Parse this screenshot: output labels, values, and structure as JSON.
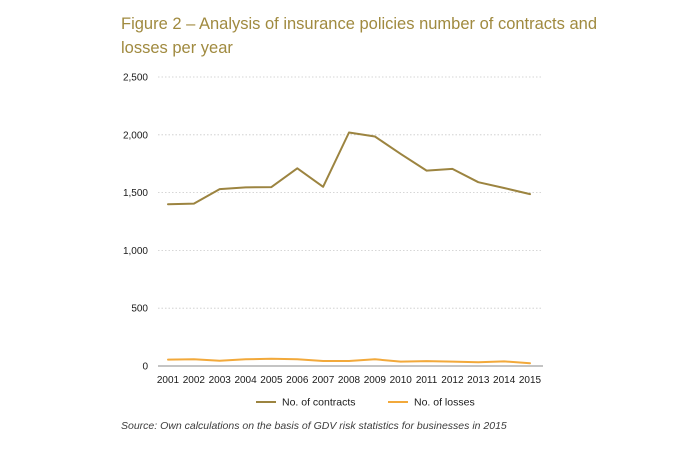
{
  "title": "Figure 2 – Analysis of insurance policies number of contracts and losses per year",
  "source": "Source: Own calculations on the basis of GDV risk statistics for businesses in 2015",
  "chart_data": {
    "type": "line",
    "title": "Figure 2 – Analysis of insurance policies number of contracts and losses per year",
    "xlabel": "",
    "ylabel": "",
    "ylim": [
      0,
      2500
    ],
    "yticks": [
      0,
      500,
      1000,
      1500,
      2000,
      2500
    ],
    "ytick_labels": [
      "0",
      "500",
      "1,000",
      "1,500",
      "2,000",
      "2,500"
    ],
    "grid": true,
    "legend_position": "bottom",
    "x": [
      "2001",
      "2002",
      "2003",
      "2004",
      "2005",
      "2006",
      "2007",
      "2008",
      "2009",
      "2010",
      "2011",
      "2012",
      "2013",
      "2014",
      "2015"
    ],
    "series": [
      {
        "name": "No. of contracts",
        "color": "#9c8440",
        "values": [
          1400,
          1405,
          1530,
          1545,
          1548,
          1710,
          1550,
          2020,
          1985,
          1835,
          1690,
          1705,
          1590,
          1540,
          1487
        ]
      },
      {
        "name": "No. of losses",
        "color": "#f2a93b",
        "values": [
          55,
          58,
          45,
          58,
          62,
          58,
          43,
          43,
          58,
          38,
          42,
          38,
          33,
          40,
          24
        ]
      }
    ]
  }
}
